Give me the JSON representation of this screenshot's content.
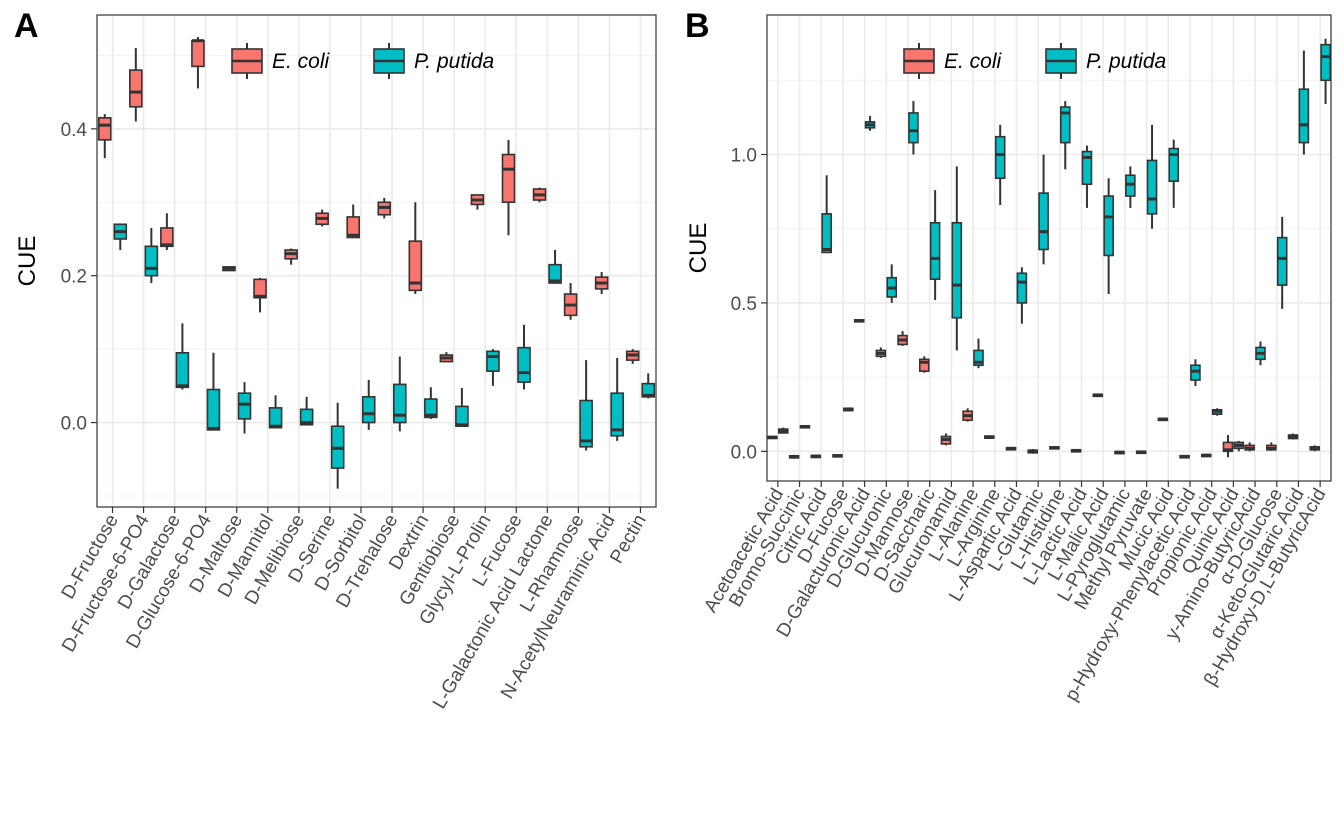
{
  "chart_data": [
    {
      "panel": "A",
      "type": "box",
      "title": "",
      "xlabel": "",
      "ylabel": "CUE",
      "ylim": [
        -0.115,
        0.555
      ],
      "yticks": [
        0.0,
        0.2,
        0.4
      ],
      "ytick_labels": [
        "0.0",
        "0.2",
        "0.4"
      ],
      "grid": true,
      "legend_position": "top-center",
      "legend_items": [
        {
          "name": "E. coli",
          "color": "#F8766D"
        },
        {
          "name": "P. putida",
          "color": "#00BFC4"
        }
      ],
      "categories": [
        "D-Fructose",
        "D-Fructose-6-PO4",
        "D-Galactose",
        "D-Glucose-6-PO4",
        "D-Maltose",
        "D-Mannitol",
        "D-Melibiose",
        "D-Serine",
        "D-Sorbitol",
        "D-Trehalose",
        "Dextrin",
        "Gentiobiose",
        "Glycyl-L-Prolin",
        "L-Fucose",
        "L-Galactonic Acid Lactone",
        "L-Rhamnose",
        "N-AcetylNeuraminic Acid",
        "Pectin"
      ],
      "boxes": [
        {
          "category": 0,
          "series": "E. coli",
          "min": 0.36,
          "q1": 0.385,
          "median": 0.405,
          "q3": 0.415,
          "max": 0.42
        },
        {
          "category": 0,
          "series": "P. putida",
          "min": 0.235,
          "q1": 0.25,
          "median": 0.26,
          "q3": 0.27,
          "max": 0.27
        },
        {
          "category": 1,
          "series": "E. coli",
          "min": 0.41,
          "q1": 0.43,
          "median": 0.45,
          "q3": 0.48,
          "max": 0.51
        },
        {
          "category": 1,
          "series": "P. putida",
          "min": 0.19,
          "q1": 0.2,
          "median": 0.21,
          "q3": 0.24,
          "max": 0.265
        },
        {
          "category": 2,
          "series": "E. coli",
          "min": 0.235,
          "q1": 0.24,
          "median": 0.242,
          "q3": 0.265,
          "max": 0.285
        },
        {
          "category": 2,
          "series": "P. putida",
          "min": 0.045,
          "q1": 0.048,
          "median": 0.05,
          "q3": 0.095,
          "max": 0.135
        },
        {
          "category": 3,
          "series": "E. coli",
          "min": 0.455,
          "q1": 0.485,
          "median": 0.52,
          "q3": 0.52,
          "max": 0.525
        },
        {
          "category": 3,
          "series": "P. putida",
          "min": -0.01,
          "q1": -0.01,
          "median": -0.008,
          "q3": 0.045,
          "max": 0.095
        },
        {
          "category": 4,
          "series": "E. coli",
          "min": 0.207,
          "q1": 0.207,
          "median": 0.21,
          "q3": 0.212,
          "max": 0.213
        },
        {
          "category": 4,
          "series": "P. putida",
          "min": -0.015,
          "q1": 0.005,
          "median": 0.025,
          "q3": 0.04,
          "max": 0.055
        },
        {
          "category": 5,
          "series": "E. coli",
          "min": 0.15,
          "q1": 0.17,
          "median": 0.172,
          "q3": 0.195,
          "max": 0.197
        },
        {
          "category": 5,
          "series": "P. putida",
          "min": -0.007,
          "q1": -0.007,
          "median": -0.005,
          "q3": 0.02,
          "max": 0.037
        },
        {
          "category": 6,
          "series": "E. coli",
          "min": 0.215,
          "q1": 0.223,
          "median": 0.23,
          "q3": 0.235,
          "max": 0.237
        },
        {
          "category": 6,
          "series": "P. putida",
          "min": -0.003,
          "q1": -0.003,
          "median": 0.0,
          "q3": 0.018,
          "max": 0.035
        },
        {
          "category": 7,
          "series": "E. coli",
          "min": 0.267,
          "q1": 0.27,
          "median": 0.278,
          "q3": 0.285,
          "max": 0.29
        },
        {
          "category": 7,
          "series": "P. putida",
          "min": -0.09,
          "q1": -0.062,
          "median": -0.035,
          "q3": -0.005,
          "max": 0.027
        },
        {
          "category": 8,
          "series": "E. coli",
          "min": 0.252,
          "q1": 0.252,
          "median": 0.255,
          "q3": 0.28,
          "max": 0.297
        },
        {
          "category": 8,
          "series": "P. putida",
          "min": -0.01,
          "q1": 0.0,
          "median": 0.012,
          "q3": 0.035,
          "max": 0.058
        },
        {
          "category": 9,
          "series": "E. coli",
          "min": 0.278,
          "q1": 0.283,
          "median": 0.293,
          "q3": 0.3,
          "max": 0.306
        },
        {
          "category": 9,
          "series": "P. putida",
          "min": -0.012,
          "q1": 0.0,
          "median": 0.01,
          "q3": 0.052,
          "max": 0.09
        },
        {
          "category": 10,
          "series": "E. coli",
          "min": 0.175,
          "q1": 0.18,
          "median": 0.19,
          "q3": 0.247,
          "max": 0.3
        },
        {
          "category": 10,
          "series": "P. putida",
          "min": 0.005,
          "q1": 0.007,
          "median": 0.01,
          "q3": 0.032,
          "max": 0.048
        },
        {
          "category": 11,
          "series": "E. coli",
          "min": 0.083,
          "q1": 0.083,
          "median": 0.088,
          "q3": 0.092,
          "max": 0.096
        },
        {
          "category": 11,
          "series": "P. putida",
          "min": -0.005,
          "q1": -0.005,
          "median": -0.003,
          "q3": 0.022,
          "max": 0.047
        },
        {
          "category": 12,
          "series": "E. coli",
          "min": 0.29,
          "q1": 0.297,
          "median": 0.303,
          "q3": 0.31,
          "max": 0.31
        },
        {
          "category": 12,
          "series": "P. putida",
          "min": 0.05,
          "q1": 0.07,
          "median": 0.09,
          "q3": 0.097,
          "max": 0.1
        },
        {
          "category": 13,
          "series": "E. coli",
          "min": 0.255,
          "q1": 0.3,
          "median": 0.345,
          "q3": 0.365,
          "max": 0.385
        },
        {
          "category": 13,
          "series": "P. putida",
          "min": 0.045,
          "q1": 0.055,
          "median": 0.068,
          "q3": 0.102,
          "max": 0.133
        },
        {
          "category": 14,
          "series": "E. coli",
          "min": 0.3,
          "q1": 0.303,
          "median": 0.31,
          "q3": 0.318,
          "max": 0.32
        },
        {
          "category": 14,
          "series": "P. putida",
          "min": 0.19,
          "q1": 0.19,
          "median": 0.193,
          "q3": 0.215,
          "max": 0.235
        },
        {
          "category": 15,
          "series": "E. coli",
          "min": 0.14,
          "q1": 0.146,
          "median": 0.16,
          "q3": 0.175,
          "max": 0.19
        },
        {
          "category": 15,
          "series": "P. putida",
          "min": -0.038,
          "q1": -0.033,
          "median": -0.025,
          "q3": 0.03,
          "max": 0.085
        },
        {
          "category": 16,
          "series": "E. coli",
          "min": 0.175,
          "q1": 0.182,
          "median": 0.19,
          "q3": 0.198,
          "max": 0.205
        },
        {
          "category": 16,
          "series": "P. putida",
          "min": -0.025,
          "q1": -0.018,
          "median": -0.01,
          "q3": 0.04,
          "max": 0.088
        },
        {
          "category": 17,
          "series": "E. coli",
          "min": 0.08,
          "q1": 0.085,
          "median": 0.092,
          "q3": 0.097,
          "max": 0.1
        },
        {
          "category": 17,
          "series": "P. putida",
          "min": 0.033,
          "q1": 0.035,
          "median": 0.037,
          "q3": 0.053,
          "max": 0.067
        }
      ]
    },
    {
      "panel": "B",
      "type": "box",
      "title": "",
      "xlabel": "",
      "ylabel": "CUE",
      "ylim": [
        -0.1,
        1.47
      ],
      "yticks": [
        0.0,
        0.5,
        1.0
      ],
      "ytick_labels": [
        "0.0",
        "0.5",
        "1.0"
      ],
      "grid": true,
      "legend_position": "top-center",
      "legend_items": [
        {
          "name": "E. coli",
          "color": "#F8766D"
        },
        {
          "name": "P. putida",
          "color": "#00BFC4"
        }
      ],
      "categories": [
        "Acetoacetic Acid",
        "Bromo-Succinic",
        "Citric Acid",
        "D-Fucose",
        "D-Galacturonic Acid",
        "D-Glucuronic",
        "D-Mannose",
        "D-Saccharic",
        "Glucuronamid",
        "L-Alanine",
        "L-Arginine",
        "L-Aspartic Acid",
        "L-Glutamic",
        "L-Histidine",
        "L-Lactic Acid",
        "L-Malic Acid",
        "L-Pyroglutamic",
        "Methyl Pyruvate",
        "Mucic Acid",
        "p-Hydroxy-Phenylacetic Acid",
        "Propionic Acid",
        "Quinic Acid",
        "y-Amino-ButyricAcid",
        "α-D-Glucose",
        "α-Keto-Glutaric Acid",
        "β-Hydroxy-D,L-ButyricAcid"
      ],
      "boxes": [
        {
          "category": 0,
          "series": "E. coli",
          "min": 0.045,
          "q1": 0.045,
          "median": 0.047,
          "q3": 0.05,
          "max": 0.052
        },
        {
          "category": 0,
          "series": "P. putida",
          "min": 0.06,
          "q1": 0.062,
          "median": 0.068,
          "q3": 0.075,
          "max": 0.08
        },
        {
          "category": 1,
          "series": "E. coli",
          "min": -0.025,
          "q1": -0.022,
          "median": -0.018,
          "q3": -0.015,
          "max": -0.012
        },
        {
          "category": 1,
          "series": "P. putida",
          "min": 0.078,
          "q1": 0.08,
          "median": 0.083,
          "q3": 0.086,
          "max": 0.088
        },
        {
          "category": 2,
          "series": "E. coli",
          "min": -0.02,
          "q1": -0.018,
          "median": -0.016,
          "q3": -0.014,
          "max": -0.012
        },
        {
          "category": 2,
          "series": "P. putida",
          "min": 0.67,
          "q1": 0.67,
          "median": 0.68,
          "q3": 0.8,
          "max": 0.93
        },
        {
          "category": 3,
          "series": "E. coli",
          "min": -0.02,
          "q1": -0.018,
          "median": -0.015,
          "q3": -0.012,
          "max": -0.01
        },
        {
          "category": 3,
          "series": "P. putida",
          "min": 0.135,
          "q1": 0.137,
          "median": 0.14,
          "q3": 0.145,
          "max": 0.148
        },
        {
          "category": 4,
          "series": "E. coli",
          "min": 0.437,
          "q1": 0.438,
          "median": 0.44,
          "q3": 0.443,
          "max": 0.445
        },
        {
          "category": 4,
          "series": "P. putida",
          "min": 1.08,
          "q1": 1.09,
          "median": 1.1,
          "q3": 1.11,
          "max": 1.13
        },
        {
          "category": 5,
          "series": "E. coli",
          "min": 0.315,
          "q1": 0.32,
          "median": 0.33,
          "q3": 0.34,
          "max": 0.35
        },
        {
          "category": 5,
          "series": "P. putida",
          "min": 0.5,
          "q1": 0.52,
          "median": 0.55,
          "q3": 0.585,
          "max": 0.63
        },
        {
          "category": 6,
          "series": "E. coli",
          "min": 0.355,
          "q1": 0.36,
          "median": 0.375,
          "q3": 0.39,
          "max": 0.405
        },
        {
          "category": 6,
          "series": "P. putida",
          "min": 1.0,
          "q1": 1.04,
          "median": 1.08,
          "q3": 1.14,
          "max": 1.18
        },
        {
          "category": 7,
          "series": "E. coli",
          "min": 0.265,
          "q1": 0.27,
          "median": 0.3,
          "q3": 0.31,
          "max": 0.32
        },
        {
          "category": 7,
          "series": "P. putida",
          "min": 0.51,
          "q1": 0.58,
          "median": 0.65,
          "q3": 0.77,
          "max": 0.88
        },
        {
          "category": 8,
          "series": "E. coli",
          "min": 0.02,
          "q1": 0.025,
          "median": 0.04,
          "q3": 0.05,
          "max": 0.06
        },
        {
          "category": 8,
          "series": "P. putida",
          "min": 0.34,
          "q1": 0.45,
          "median": 0.56,
          "q3": 0.77,
          "max": 0.96
        },
        {
          "category": 9,
          "series": "E. coli",
          "min": 0.1,
          "q1": 0.105,
          "median": 0.12,
          "q3": 0.135,
          "max": 0.145
        },
        {
          "category": 9,
          "series": "P. putida",
          "min": 0.28,
          "q1": 0.29,
          "median": 0.3,
          "q3": 0.34,
          "max": 0.38
        },
        {
          "category": 10,
          "series": "E. coli",
          "min": 0.046,
          "q1": 0.047,
          "median": 0.049,
          "q3": 0.051,
          "max": 0.052
        },
        {
          "category": 10,
          "series": "P. putida",
          "min": 0.83,
          "q1": 0.92,
          "median": 1.0,
          "q3": 1.06,
          "max": 1.1
        },
        {
          "category": 11,
          "series": "E. coli",
          "min": 0.008,
          "q1": 0.009,
          "median": 0.01,
          "q3": 0.012,
          "max": 0.013
        },
        {
          "category": 11,
          "series": "P. putida",
          "min": 0.43,
          "q1": 0.5,
          "median": 0.57,
          "q3": 0.6,
          "max": 0.62
        },
        {
          "category": 12,
          "series": "E. coli",
          "min": -0.008,
          "q1": -0.005,
          "median": -0.002,
          "q3": 0.004,
          "max": 0.008
        },
        {
          "category": 12,
          "series": "P. putida",
          "min": 0.63,
          "q1": 0.68,
          "median": 0.74,
          "q3": 0.87,
          "max": 1.0
        },
        {
          "category": 13,
          "series": "E. coli",
          "min": 0.008,
          "q1": 0.009,
          "median": 0.012,
          "q3": 0.015,
          "max": 0.017
        },
        {
          "category": 13,
          "series": "P. putida",
          "min": 0.95,
          "q1": 1.04,
          "median": 1.14,
          "q3": 1.16,
          "max": 1.18
        },
        {
          "category": 14,
          "series": "E. coli",
          "min": 0.0,
          "q1": 0.001,
          "median": 0.003,
          "q3": 0.005,
          "max": 0.006
        },
        {
          "category": 14,
          "series": "P. putida",
          "min": 0.82,
          "q1": 0.9,
          "median": 0.99,
          "q3": 1.01,
          "max": 1.03
        },
        {
          "category": 15,
          "series": "E. coli",
          "min": 0.186,
          "q1": 0.188,
          "median": 0.19,
          "q3": 0.192,
          "max": 0.194
        },
        {
          "category": 15,
          "series": "P. putida",
          "min": 0.53,
          "q1": 0.66,
          "median": 0.79,
          "q3": 0.86,
          "max": 0.92
        },
        {
          "category": 16,
          "series": "E. coli",
          "min": -0.008,
          "q1": -0.006,
          "median": -0.003,
          "q3": -0.001,
          "max": 0.001
        },
        {
          "category": 16,
          "series": "P. putida",
          "min": 0.82,
          "q1": 0.86,
          "median": 0.9,
          "q3": 0.93,
          "max": 0.96
        },
        {
          "category": 17,
          "series": "E. coli",
          "min": -0.006,
          "q1": -0.004,
          "median": -0.002,
          "q3": 0.0,
          "max": 0.002
        },
        {
          "category": 17,
          "series": "P. putida",
          "min": 0.75,
          "q1": 0.8,
          "median": 0.85,
          "q3": 0.98,
          "max": 1.1
        },
        {
          "category": 18,
          "series": "E. coli",
          "min": 0.103,
          "q1": 0.105,
          "median": 0.108,
          "q3": 0.111,
          "max": 0.113
        },
        {
          "category": 18,
          "series": "P. putida",
          "min": 0.82,
          "q1": 0.91,
          "median": 1.0,
          "q3": 1.02,
          "max": 1.05
        },
        {
          "category": 19,
          "series": "E. coli",
          "min": -0.022,
          "q1": -0.02,
          "median": -0.017,
          "q3": -0.015,
          "max": -0.013
        },
        {
          "category": 19,
          "series": "P. putida",
          "min": 0.22,
          "q1": 0.24,
          "median": 0.27,
          "q3": 0.29,
          "max": 0.31
        },
        {
          "category": 20,
          "series": "E. coli",
          "min": -0.017,
          "q1": -0.015,
          "median": -0.013,
          "q3": -0.011,
          "max": -0.009
        },
        {
          "category": 20,
          "series": "P. putida",
          "min": 0.12,
          "q1": 0.125,
          "median": 0.135,
          "q3": 0.14,
          "max": 0.145
        },
        {
          "category": 21,
          "series": "E. coli",
          "min": -0.02,
          "q1": 0.0,
          "median": 0.005,
          "q3": 0.03,
          "max": 0.055
        },
        {
          "category": 21,
          "series": "P. putida",
          "min": 0.0,
          "q1": 0.01,
          "median": 0.02,
          "q3": 0.03,
          "max": 0.035
        },
        {
          "category": 22,
          "series": "E. coli",
          "min": 0.0,
          "q1": 0.005,
          "median": 0.01,
          "q3": 0.02,
          "max": 0.03
        },
        {
          "category": 22,
          "series": "P. putida",
          "min": 0.29,
          "q1": 0.31,
          "median": 0.33,
          "q3": 0.35,
          "max": 0.37
        },
        {
          "category": 23,
          "series": "E. coli",
          "min": 0.002,
          "q1": 0.005,
          "median": 0.01,
          "q3": 0.02,
          "max": 0.03
        },
        {
          "category": 23,
          "series": "P. putida",
          "min": 0.48,
          "q1": 0.56,
          "median": 0.65,
          "q3": 0.72,
          "max": 0.79
        },
        {
          "category": 24,
          "series": "E. coli",
          "min": 0.04,
          "q1": 0.043,
          "median": 0.05,
          "q3": 0.055,
          "max": 0.06
        },
        {
          "category": 24,
          "series": "P. putida",
          "min": 1.0,
          "q1": 1.04,
          "median": 1.1,
          "q3": 1.22,
          "max": 1.35
        },
        {
          "category": 25,
          "series": "E. coli",
          "min": 0.0,
          "q1": 0.005,
          "median": 0.01,
          "q3": 0.015,
          "max": 0.02
        },
        {
          "category": 25,
          "series": "P. putida",
          "min": 1.17,
          "q1": 1.25,
          "median": 1.33,
          "q3": 1.37,
          "max": 1.39
        }
      ]
    }
  ]
}
